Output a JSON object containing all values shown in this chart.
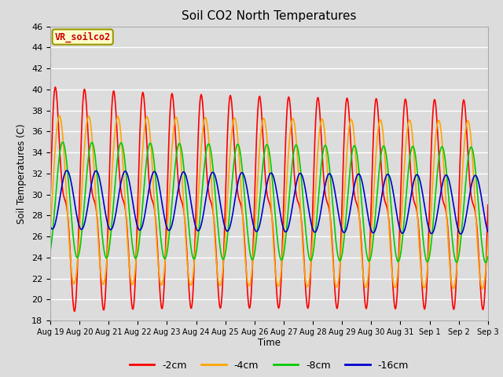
{
  "title": "Soil CO2 North Temperatures",
  "ylabel": "Soil Temperatures (C)",
  "xlabel": "Time",
  "annotation": "VR_soilco2",
  "ylim": [
    18,
    46
  ],
  "background_color": "#dcdcdc",
  "plot_bg_color": "#dcdcdc",
  "series_colors": {
    "-2cm": "#ff0000",
    "-4cm": "#ffa500",
    "-8cm": "#00cc00",
    "-16cm": "#0000cc"
  },
  "x_tick_labels": [
    "Aug 19",
    "Aug 20",
    "Aug 21",
    "Aug 22",
    "Aug 23",
    "Aug 24",
    "Aug 25",
    "Aug 26",
    "Aug 27",
    "Aug 28",
    "Aug 29",
    "Aug 30",
    "Aug 31",
    "Sep 1",
    "Sep 2",
    "Sep 3"
  ],
  "yticks": [
    18,
    20,
    22,
    24,
    26,
    28,
    30,
    32,
    34,
    36,
    38,
    40,
    42,
    44,
    46
  ],
  "n_days": 15
}
